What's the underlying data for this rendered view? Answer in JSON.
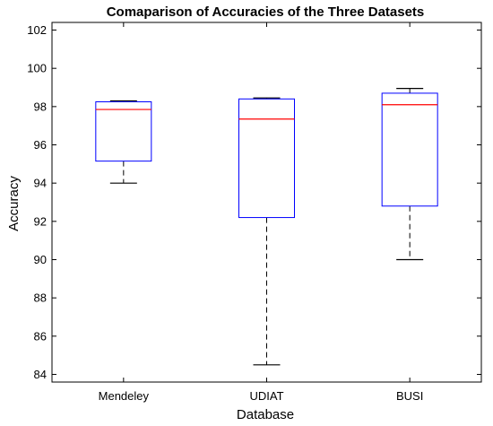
{
  "chart_data": {
    "type": "box",
    "title": "Comaparison of Accuracies of the Three Datasets",
    "xlabel": "Database",
    "ylabel": "Accuracy",
    "ylim": [
      83.6,
      102.4
    ],
    "yticks": [
      84,
      86,
      88,
      90,
      92,
      94,
      96,
      98,
      100,
      102
    ],
    "categories": [
      "Mendeley",
      "UDIAT",
      "BUSI"
    ],
    "boxes": [
      {
        "category": "Mendeley",
        "min": 94.0,
        "q1": 95.15,
        "median": 97.85,
        "q3": 98.25,
        "max": 98.3
      },
      {
        "category": "UDIAT",
        "min": 84.5,
        "q1": 92.2,
        "median": 97.35,
        "q3": 98.4,
        "max": 98.45
      },
      {
        "category": "BUSI",
        "min": 90.0,
        "q1": 92.8,
        "median": 98.1,
        "q3": 98.7,
        "max": 98.95
      }
    ],
    "colors": {
      "box": "#0000ff",
      "median": "#ff0000",
      "whisker": "#000000"
    },
    "grid": false
  }
}
